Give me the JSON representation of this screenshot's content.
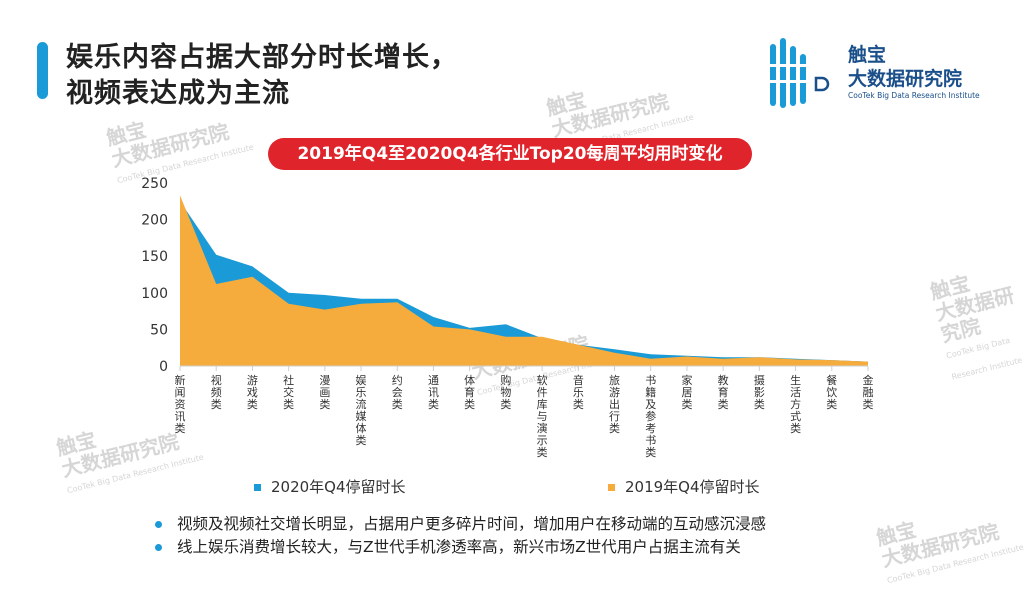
{
  "page": {
    "title_line1": "娱乐内容占据大部分时长增长，",
    "title_line2": "视频表达成为主流"
  },
  "logo": {
    "name_line1": "触宝",
    "name_line2": "大数据研究院",
    "english": "CooTek Big Data Research Institute"
  },
  "watermark": {
    "line1": "触宝",
    "line2": "大数据研究院",
    "english": "CooTek Big Data Research Institute"
  },
  "bullets": [
    "视频及视频社交增长明显，占据用户更多碎片时间，增加用户在移动端的互动感沉浸感",
    "线上娱乐消费增长较大，与Z世代手机渗透率高，新兴市场Z世代用户占据主流有关"
  ],
  "colors": {
    "series_2020": "#1a9ad6",
    "series_2019": "#f5ac3c",
    "title_bg": "#e0242b",
    "accent": "#1a9ad6"
  },
  "chart_data": {
    "type": "area",
    "title": "2019年Q4至2020Q4各行业Top20每周平均用时变化",
    "xlabel": "",
    "ylabel": "",
    "ylim": [
      0,
      250
    ],
    "yticks": [
      0,
      50,
      100,
      150,
      200,
      250
    ],
    "legend_position": "bottom",
    "categories": [
      "新闻资讯类",
      "视频类",
      "游戏类",
      "社交类",
      "漫画类",
      "娱乐流媒体类",
      "约会类",
      "通讯类",
      "体育类",
      "购物类",
      "软件库与演示类",
      "音乐类",
      "旅游出行类",
      "书籍及参考书类",
      "家居类",
      "教育类",
      "摄影类",
      "生活方式类",
      "餐饮类",
      "金融类"
    ],
    "series": [
      {
        "name": "2020年Q4停留时长",
        "color": "#1a9ad6",
        "values": [
          225,
          152,
          136,
          100,
          97,
          92,
          92,
          67,
          52,
          57,
          38,
          29,
          23,
          16,
          14,
          12,
          12,
          10,
          8,
          6
        ]
      },
      {
        "name": "2019年Q4停留时长",
        "color": "#f5ac3c",
        "values": [
          233,
          112,
          122,
          85,
          77,
          85,
          87,
          54,
          50,
          40,
          40,
          29,
          18,
          10,
          13,
          10,
          12,
          9,
          8,
          6
        ]
      }
    ]
  }
}
